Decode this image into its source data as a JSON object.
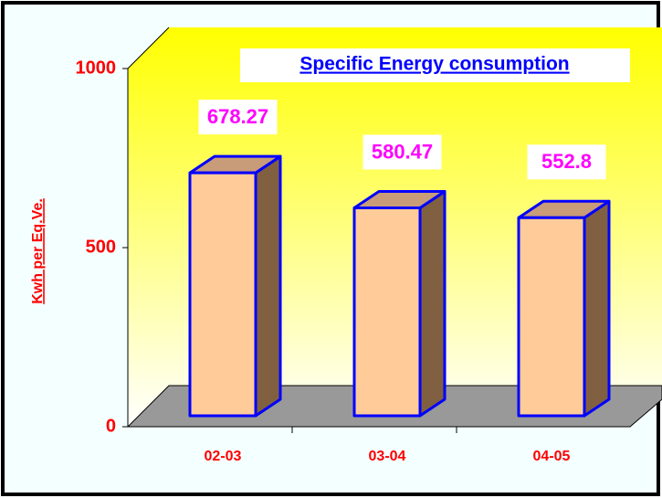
{
  "chart_data": {
    "type": "bar3d",
    "title": "Specific Energy consumption",
    "y_label": "Kwh per Eq.Ve.",
    "categories": [
      "02-03",
      "03-04",
      "04-05"
    ],
    "values": [
      678.27,
      580.47,
      552.8
    ],
    "color": "#ffcc99",
    "ylim": [
      0,
      1000
    ],
    "yticks": [
      0,
      500,
      1000
    ]
  }
}
